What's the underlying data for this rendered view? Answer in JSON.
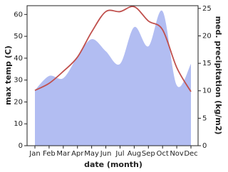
{
  "chart_data": {
    "type": "line_area",
    "x_label": "date (month)",
    "y_label": "max temp (C)",
    "y2_label": "med. precipitation (kg/m2)",
    "categories": [
      "Jan",
      "Feb",
      "Mar",
      "Apr",
      "May",
      "Jun",
      "Jul",
      "Aug",
      "Sep",
      "Oct",
      "Nov",
      "Dec"
    ],
    "series": [
      {
        "name": "max temp",
        "color": "#c0504d",
        "axis": "y",
        "values": [
          25.3,
          28.5,
          34,
          40.5,
          52,
          61.3,
          61.3,
          63.5,
          57,
          53,
          35.7,
          24.7
        ]
      },
      {
        "name": "med. precipitation",
        "color": "#b2bdf2",
        "axis": "y2",
        "values": [
          10.1,
          12.7,
          12.3,
          16.2,
          19.4,
          17.2,
          14.9,
          21.6,
          18.1,
          24.5,
          11,
          14.9
        ]
      }
    ],
    "ylim": [
      0,
      64
    ],
    "yticks": [
      0,
      10,
      20,
      30,
      40,
      50,
      60
    ],
    "y2lim": [
      0,
      25.5
    ],
    "y2ticks": [
      0,
      5,
      10,
      15,
      20,
      25
    ]
  }
}
